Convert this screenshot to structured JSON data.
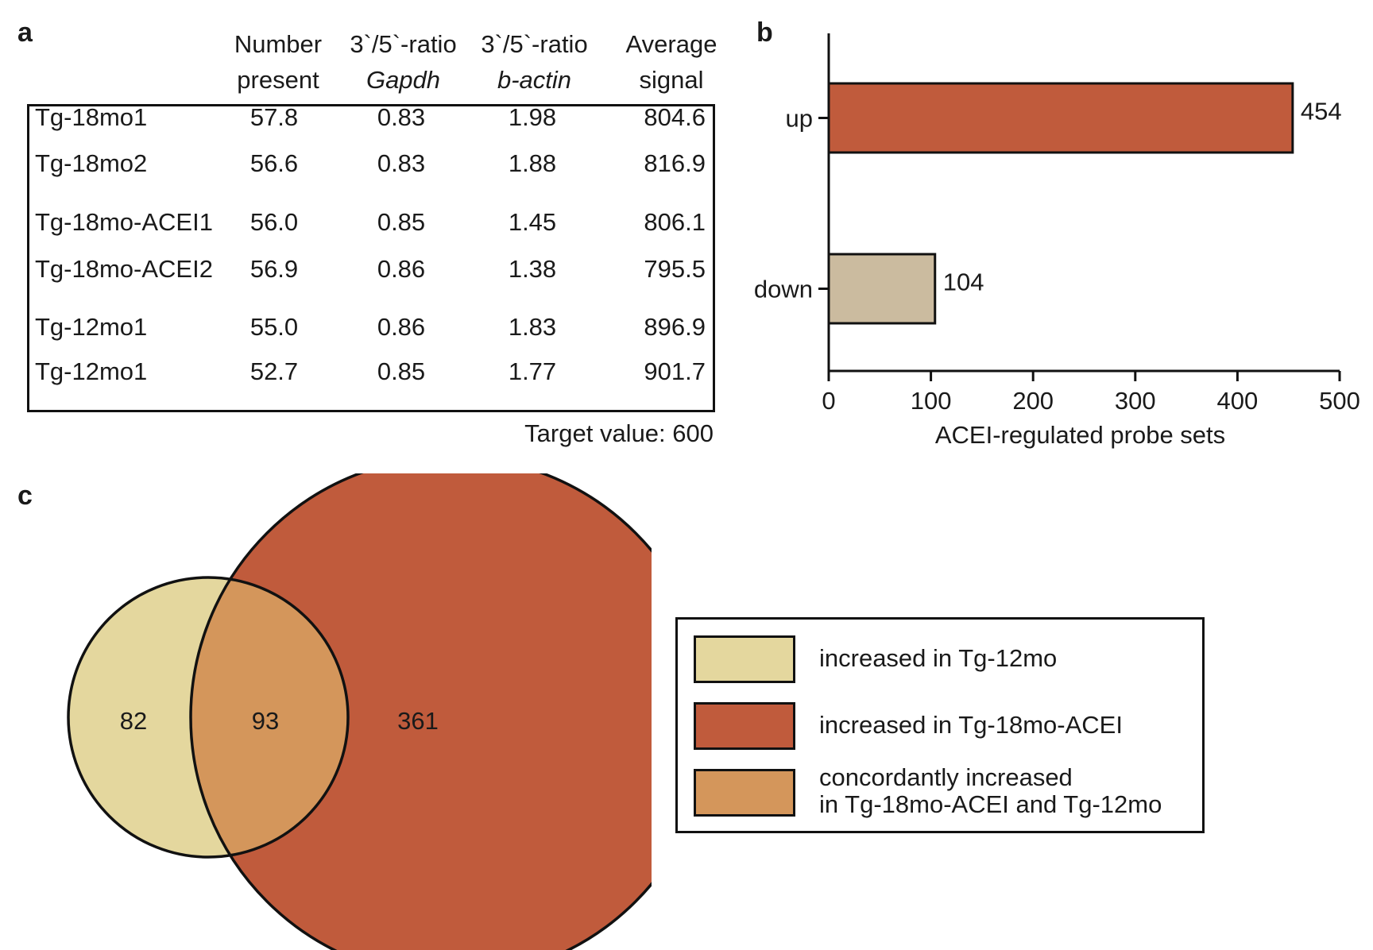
{
  "panels": {
    "a": "a",
    "b": "b",
    "c": "c"
  },
  "table": {
    "headers": [
      {
        "line1": "Number",
        "line2": "present",
        "italic": false
      },
      {
        "line1": "3`/5`-ratio",
        "line2": "Gapdh",
        "italic": true
      },
      {
        "line1": "3`/5`-ratio",
        "line2": "b-actin",
        "italic": true
      },
      {
        "line1": "Average",
        "line2": "signal",
        "italic": false
      }
    ],
    "rows": [
      {
        "sample": "Tg-18mo1",
        "number_present": "57.8",
        "gapdh": "0.83",
        "bactin": "1.98",
        "avg_signal": "804.6"
      },
      {
        "sample": "Tg-18mo2",
        "number_present": "56.6",
        "gapdh": "0.83",
        "bactin": "1.88",
        "avg_signal": "816.9"
      },
      {
        "sample": "Tg-18mo-ACEI1",
        "number_present": "56.0",
        "gapdh": "0.85",
        "bactin": "1.45",
        "avg_signal": "806.1"
      },
      {
        "sample": "Tg-18mo-ACEI2",
        "number_present": "56.9",
        "gapdh": "0.86",
        "bactin": "1.38",
        "avg_signal": "795.5"
      },
      {
        "sample": "Tg-12mo1",
        "number_present": "55.0",
        "gapdh": "0.86",
        "bactin": "1.83",
        "avg_signal": "896.9"
      },
      {
        "sample": "Tg-12mo1",
        "number_present": "52.7",
        "gapdh": "0.85",
        "bactin": "1.77",
        "avg_signal": "901.7"
      }
    ],
    "target_value": "Target value: 600"
  },
  "chart_data": [
    {
      "type": "bar",
      "orientation": "horizontal",
      "categories": [
        "up",
        "down"
      ],
      "values": [
        454,
        104
      ],
      "value_labels": [
        "454",
        "104"
      ],
      "xlabel": "ACEI-regulated probe sets",
      "ylabel": "",
      "xlim": [
        0,
        500
      ],
      "xticks": [
        "0",
        "100",
        "200",
        "300",
        "400",
        "500"
      ],
      "colors": [
        "#c05b3c",
        "#cbbb9f"
      ]
    },
    {
      "type": "venn",
      "sets": [
        {
          "name": "increased in Tg-12mo",
          "only": "82",
          "color": "#e4d79e"
        },
        {
          "name": "increased in Tg-18mo-ACEI",
          "only": "361",
          "color": "#c05b3c"
        }
      ],
      "intersection": {
        "name": "concordantly increased in Tg-18mo-ACEI and Tg-12mo",
        "value": "93",
        "color": "#d4965b"
      },
      "legend": [
        {
          "line1": "increased in Tg-12mo",
          "line2": "",
          "color": "#e4d79e"
        },
        {
          "line1": "increased in Tg-18mo-ACEI",
          "line2": "",
          "color": "#c05b3c"
        },
        {
          "line1": "concordantly increased",
          "line2": "in Tg-18mo-ACEI and Tg-12mo",
          "color": "#d4965b"
        }
      ]
    }
  ]
}
